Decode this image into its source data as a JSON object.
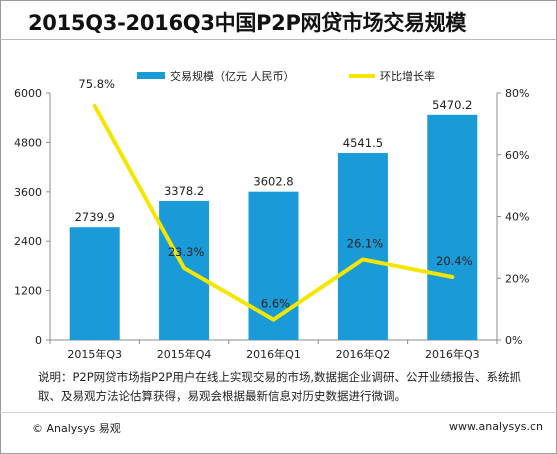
{
  "title": "2015Q3-2016Q3中国P2P网贷市场交易规模",
  "chart_data": {
    "type": "bar",
    "categories": [
      "2015年Q3",
      "2015年Q4",
      "2016年Q1",
      "2016年Q2",
      "2016年Q3"
    ],
    "series": [
      {
        "name": "交易规模（亿元 人民币）",
        "type": "bar",
        "axis": "left",
        "values": [
          2739.9,
          3378.2,
          3602.8,
          4541.5,
          5470.2
        ],
        "labels": [
          "2739.9",
          "3378.2",
          "3602.8",
          "4541.5",
          "5470.2"
        ]
      },
      {
        "name": "环比增长率",
        "type": "line",
        "axis": "right",
        "values": [
          75.8,
          23.3,
          6.6,
          26.1,
          20.4
        ],
        "labels": [
          "75.8%",
          "23.3%",
          "6.6%",
          "26.1%",
          "20.4%"
        ]
      }
    ],
    "left_axis": {
      "ylim": [
        0,
        6000
      ],
      "ticks": [
        "0",
        "1200",
        "2400",
        "3600",
        "4800",
        "6000"
      ]
    },
    "right_axis": {
      "ylim": [
        0,
        80
      ],
      "ticks": [
        "0%",
        "20%",
        "40%",
        "60%",
        "80%"
      ]
    },
    "legend_position": "top",
    "grid": false,
    "colors": {
      "bar": "#1a9ad6",
      "line": "#f5e600"
    }
  },
  "note": "说明：P2P网贷市场指P2P用户在线上实现交易的市场,数据据企业调研、公开业绩报告、系统抓取、及易观方法论估算获得，易观会根据最新信息对历史数据进行微调。",
  "footer": {
    "copyright": "© Analysys 易观",
    "website": "www.analysys.cn"
  }
}
